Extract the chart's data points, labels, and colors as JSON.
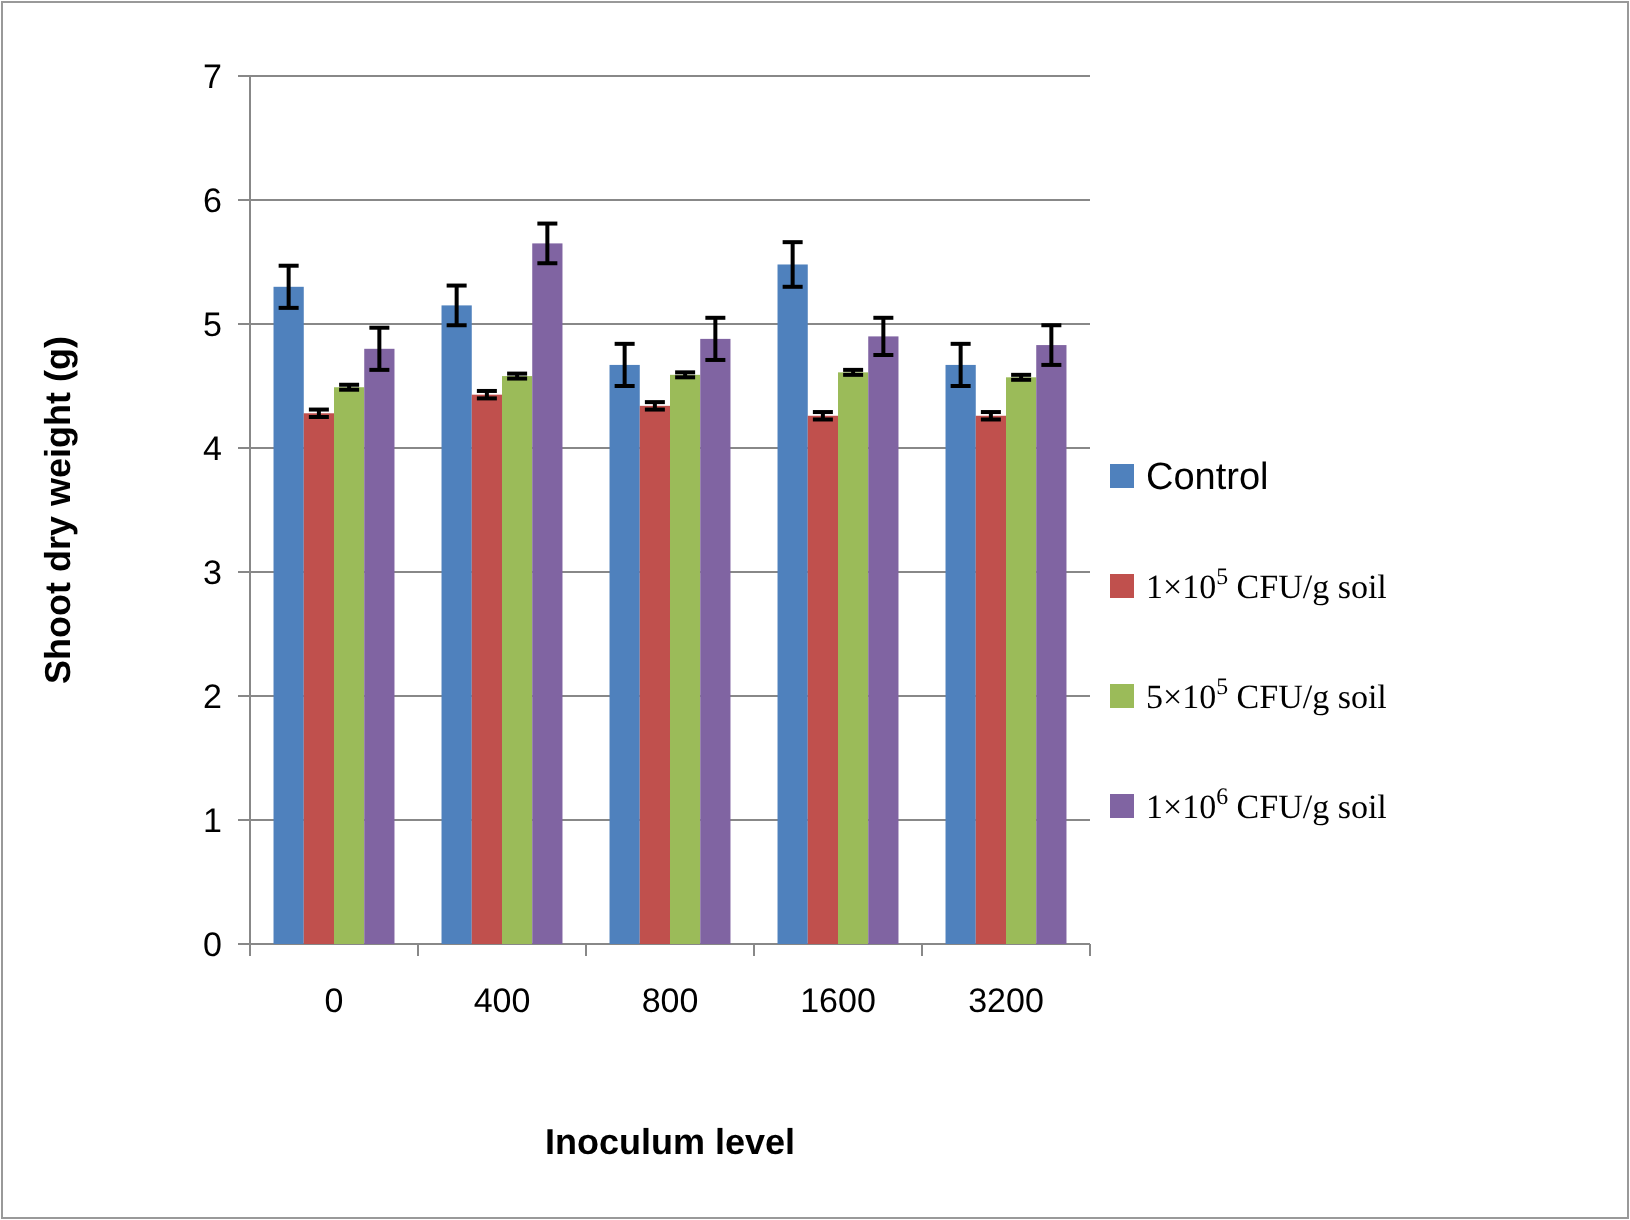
{
  "chart_data": {
    "type": "bar",
    "xlabel": "Inoculum level",
    "ylabel": "Shoot dry weight (g)",
    "categories": [
      "0",
      "400",
      "800",
      "1600",
      "3200"
    ],
    "series": [
      {
        "name": "Control",
        "color": "#4f81bd",
        "values": [
          5.3,
          5.15,
          4.67,
          5.48,
          4.67
        ],
        "errors": [
          0.17,
          0.16,
          0.17,
          0.18,
          0.17
        ]
      },
      {
        "name": "1×10$^{5}$ CFU/g soil",
        "color": "#c0504d",
        "values": [
          4.28,
          4.43,
          4.34,
          4.26,
          4.26
        ],
        "errors": [
          0.03,
          0.03,
          0.03,
          0.03,
          0.03
        ]
      },
      {
        "name": "5×10$^{5}$ CFU/g soil",
        "color": "#9bbb59",
        "values": [
          4.49,
          4.58,
          4.59,
          4.61,
          4.57
        ],
        "errors": [
          0.02,
          0.02,
          0.02,
          0.02,
          0.02
        ]
      },
      {
        "name": "1×10$^{6}$ CFU/g soil",
        "color": "#8064a2",
        "values": [
          4.8,
          5.65,
          4.88,
          4.9,
          4.83
        ],
        "errors": [
          0.17,
          0.16,
          0.17,
          0.15,
          0.16
        ]
      }
    ],
    "ylim": [
      0,
      7
    ],
    "yticks": [
      0,
      1,
      2,
      3,
      4,
      5,
      6,
      7
    ],
    "grid": "y",
    "legend": "right"
  }
}
